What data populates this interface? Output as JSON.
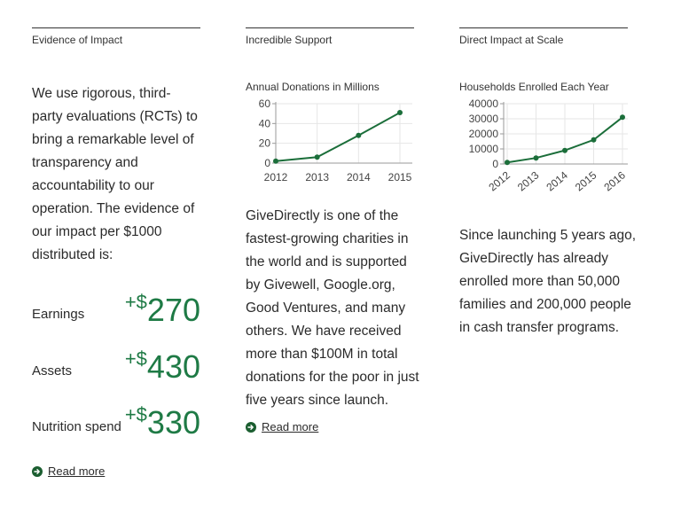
{
  "columns": [
    {
      "heading": "Evidence of Impact",
      "body": "We use rigorous, third-party evaluations (RCTs) to bring a remarkable level of transparency and accountability to our operation. The evidence of our impact per $1000 distributed is:",
      "metrics": [
        {
          "label": "Earnings",
          "sign": "+$",
          "value": "270"
        },
        {
          "label": "Assets",
          "sign": "+$",
          "value": "430"
        },
        {
          "label": "Nutrition spend",
          "sign": "+$",
          "value": "330"
        }
      ],
      "read_more": "Read more"
    },
    {
      "heading": "Incredible Support",
      "chart_title": "Annual Donations in Millions",
      "body": "GiveDirectly is one of the fastest-growing charities in the world and is supported by Givewell, Google.org, Good Ventures, and many others. We have received more than $100M in total donations for the poor in just five years since launch.",
      "read_more": "Read more"
    },
    {
      "heading": "Direct Impact at Scale",
      "chart_title": "Households Enrolled Each Year",
      "body": "Since launching 5 years ago, GiveDirectly has already enrolled more than 50,000 families and 200,000 people in cash transfer programs."
    }
  ],
  "colors": {
    "accent": "#1e7a45",
    "line": "#1b6e3a",
    "grid": "#e6e6e6"
  },
  "chart_data": [
    {
      "type": "line",
      "title": "Annual Donations in Millions",
      "x": [
        "2012",
        "2013",
        "2014",
        "2015"
      ],
      "y": [
        2,
        6,
        28,
        51
      ],
      "yticks": [
        "0",
        "20",
        "40",
        "60"
      ],
      "ylim": [
        0,
        60
      ],
      "grid": true
    },
    {
      "type": "line",
      "title": "Households Enrolled Each Year",
      "x": [
        "2012",
        "2013",
        "2014",
        "2015",
        "2016"
      ],
      "y": [
        1000,
        4000,
        9000,
        16000,
        31000
      ],
      "yticks": [
        "0",
        "10000",
        "20000",
        "30000",
        "40000"
      ],
      "ylim": [
        0,
        40000
      ],
      "grid": true
    }
  ]
}
